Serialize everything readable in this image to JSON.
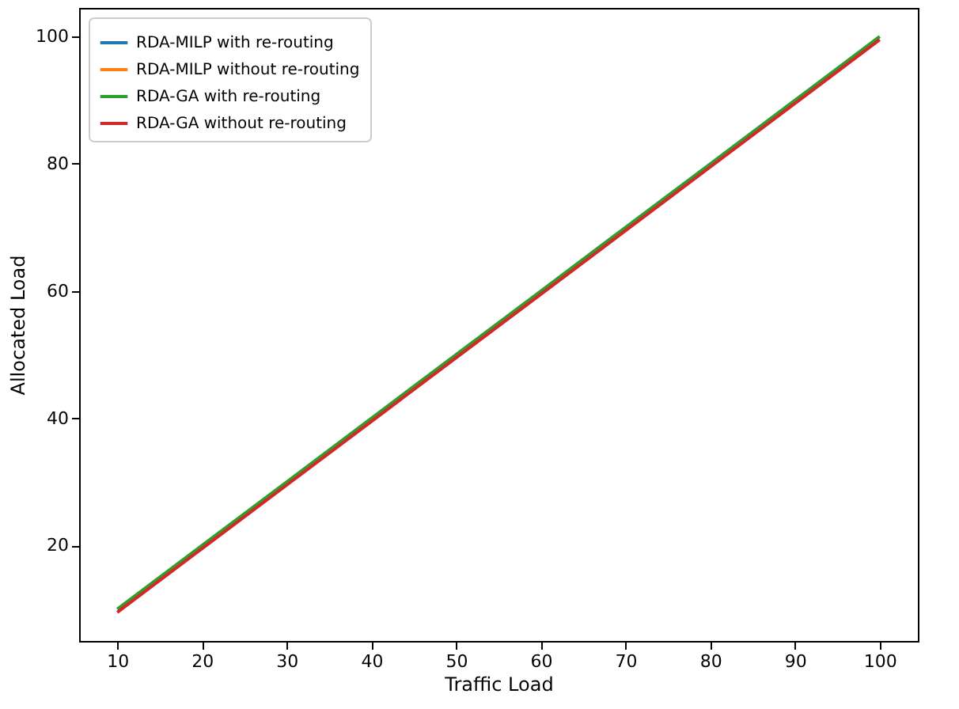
{
  "chart_data": {
    "type": "line",
    "xlabel": "Traffic Load",
    "ylabel": "Allocated Load",
    "x": [
      10,
      20,
      30,
      40,
      50,
      60,
      70,
      80,
      90,
      100
    ],
    "series": [
      {
        "name": "RDA-MILP with re-routing",
        "color": "#1f77b4",
        "values": [
          null,
          null,
          null,
          null,
          null,
          null,
          null,
          null,
          null,
          null
        ]
      },
      {
        "name": "RDA-MILP without re-routing",
        "color": "#ff7f0e",
        "values": [
          null,
          null,
          null,
          null,
          null,
          null,
          null,
          null,
          null,
          null
        ]
      },
      {
        "name": "RDA-GA with re-routing",
        "color": "#2ca02c",
        "values": [
          10,
          20,
          30,
          40,
          50,
          60,
          70,
          80,
          90,
          100
        ]
      },
      {
        "name": "RDA-GA without re-routing",
        "color": "#d62728",
        "values": [
          9.5,
          19.5,
          29.5,
          39.5,
          49.5,
          59.5,
          69.5,
          79.5,
          89.5,
          99.5
        ]
      }
    ],
    "xlim": [
      5.5,
      104.5
    ],
    "xticks": [
      10,
      20,
      30,
      40,
      50,
      60,
      70,
      80,
      90,
      100
    ],
    "ylim": [
      5,
      104.5
    ],
    "yticks": [
      20,
      40,
      60,
      80,
      100
    ],
    "grid": false,
    "legend": "top left",
    "marker": "none",
    "line_style": "solid"
  }
}
